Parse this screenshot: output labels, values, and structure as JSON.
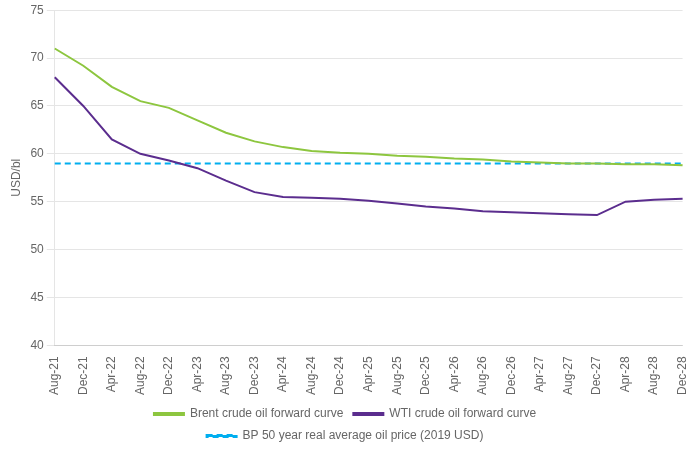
{
  "chart_data": {
    "type": "line",
    "categories": [
      "Aug-21",
      "Dec-21",
      "Apr-22",
      "Aug-22",
      "Dec-22",
      "Apr-23",
      "Aug-23",
      "Dec-23",
      "Apr-24",
      "Aug-24",
      "Dec-24",
      "Apr-25",
      "Aug-25",
      "Dec-25",
      "Apr-26",
      "Aug-26",
      "Dec-26",
      "Apr-27",
      "Aug-27",
      "Dec-27",
      "Apr-28",
      "Aug-28",
      "Dec-28"
    ],
    "series": [
      {
        "name": "Brent crude oil forward curve",
        "color": "#8DC63F",
        "line_style": "solid",
        "values": [
          71.0,
          69.2,
          67.0,
          65.5,
          64.8,
          63.5,
          62.2,
          61.3,
          60.7,
          60.3,
          60.1,
          60.0,
          59.8,
          59.7,
          59.5,
          59.4,
          59.2,
          59.1,
          59.0,
          59.0,
          58.9,
          58.9,
          58.8
        ]
      },
      {
        "name": "WTI crude oil forward curve",
        "color": "#5B2D8E",
        "line_style": "solid",
        "values": [
          68.0,
          65.0,
          61.5,
          60.0,
          59.3,
          58.5,
          57.2,
          56.0,
          55.5,
          55.4,
          55.3,
          55.1,
          54.8,
          54.5,
          54.3,
          54.0,
          53.9,
          53.8,
          53.7,
          53.6,
          55.0,
          55.2,
          55.3
        ]
      }
    ],
    "reference_lines": [
      {
        "name": "BP 50 year real average oil price (2019 USD)",
        "value": 59.0,
        "color": "#00AEEF",
        "line_style": "dashed"
      }
    ],
    "ylabel": "USD/bl",
    "ylim": [
      40,
      75
    ],
    "yticks": [
      40,
      45,
      50,
      55,
      60,
      65,
      70,
      75
    ],
    "grid": "y",
    "legend": "bottom"
  }
}
